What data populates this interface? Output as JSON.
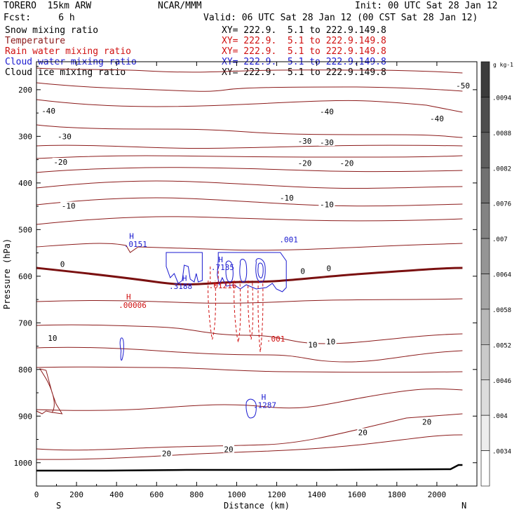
{
  "header": {
    "model": "TORERO  15km ARW",
    "center": "NCAR/MMM",
    "init": "Init: 00 UTC Sat 28 Jan 12",
    "fcst": "Fcst:     6 h",
    "valid": "Valid: 06 UTC Sat 28 Jan 12 (00 CST Sat 28 Jan 12)",
    "legend_fields": [
      {
        "name": "Snow mixing ratio",
        "color": "#000000"
      },
      {
        "name": "Temperature",
        "color": "#8b1a1a"
      },
      {
        "name": "Rain water mixing ratio",
        "color": "#d01010"
      },
      {
        "name": "Cloud water mixing ratio",
        "color": "#1a1ad0"
      },
      {
        "name": "Cloud ice mixing ratio",
        "color": "#000000"
      }
    ],
    "xsec_label": "XY= 222.9.  5.1 to 222.9.149.8"
  },
  "chart_data": {
    "type": "cross-section contour",
    "xlabel": "Distance (km)",
    "ylabel": "Pressure (hPa)",
    "x_ticks": [
      0,
      200,
      400,
      600,
      800,
      1000,
      1200,
      1400,
      1600,
      1800,
      2000
    ],
    "x_end_labels": {
      "left": "S",
      "right": "N"
    },
    "y_ticks": [
      200,
      300,
      400,
      500,
      600,
      700,
      800,
      900,
      1000
    ],
    "xlim": [
      0,
      2200
    ],
    "ylim": [
      1050,
      140
    ],
    "colorbar_unit": "g kg-1",
    "colorbar_ticks": [
      ".0094",
      ".0088",
      ".0082",
      ".0076",
      ".007",
      ".0064",
      ".0058",
      ".0052",
      ".0046",
      ".004",
      ".0034"
    ],
    "temperature_isotherm_labels": [
      {
        "text": "-50",
        "x": 2130,
        "p": 191
      },
      {
        "text": "-40",
        "x": 60,
        "p": 245
      },
      {
        "text": "-40",
        "x": 1450,
        "p": 247
      },
      {
        "text": "-40",
        "x": 2000,
        "p": 262
      },
      {
        "text": "-30",
        "x": 140,
        "p": 300
      },
      {
        "text": "-30",
        "x": 1340,
        "p": 310
      },
      {
        "text": "-30",
        "x": 1450,
        "p": 313
      },
      {
        "text": "-20",
        "x": 120,
        "p": 355
      },
      {
        "text": "-20",
        "x": 1340,
        "p": 357
      },
      {
        "text": "-20",
        "x": 1550,
        "p": 357
      },
      {
        "text": "-10",
        "x": 160,
        "p": 449
      },
      {
        "text": "-10",
        "x": 1250,
        "p": 432
      },
      {
        "text": "-10",
        "x": 1450,
        "p": 446
      },
      {
        "text": "0",
        "x": 130,
        "p": 574
      },
      {
        "text": "0",
        "x": 1330,
        "p": 589
      },
      {
        "text": "0",
        "x": 1460,
        "p": 583
      },
      {
        "text": "10",
        "x": 80,
        "p": 733
      },
      {
        "text": "10",
        "x": 1380,
        "p": 747
      },
      {
        "text": "10",
        "x": 1470,
        "p": 740
      },
      {
        "text": "20",
        "x": 650,
        "p": 980
      },
      {
        "text": "20",
        "x": 960,
        "p": 971
      },
      {
        "text": "20",
        "x": 1630,
        "p": 935
      },
      {
        "text": "20",
        "x": 1950,
        "p": 912
      }
    ],
    "field_annotations": [
      {
        "text": "H",
        "x": 475,
        "p": 520,
        "color": "#1a1ad0"
      },
      {
        "text": ".0151",
        "x": 495,
        "p": 537,
        "color": "#1a1ad0"
      },
      {
        "text": "H",
        "x": 740,
        "p": 610,
        "color": "#1a1ad0"
      },
      {
        "text": ".3188",
        "x": 720,
        "p": 627,
        "color": "#1a1ad0"
      },
      {
        "text": "H",
        "x": 920,
        "p": 570,
        "color": "#1a1ad0"
      },
      {
        "text": ".7135",
        "x": 930,
        "p": 587,
        "color": "#1a1ad0"
      },
      {
        "text": ".01216",
        "x": 930,
        "p": 626,
        "color": "#d01010"
      },
      {
        "text": ".001",
        "x": 1260,
        "p": 527,
        "color": "#1a1ad0"
      },
      {
        "text": "H",
        "x": 460,
        "p": 650,
        "color": "#d01010"
      },
      {
        "text": ".00006",
        "x": 480,
        "p": 668,
        "color": "#d01010"
      },
      {
        "text": ".001",
        "x": 1195,
        "p": 740,
        "color": "#d01010"
      },
      {
        "text": "H",
        "x": 1135,
        "p": 865,
        "color": "#1a1ad0"
      },
      {
        "text": ".1287",
        "x": 1140,
        "p": 882,
        "color": "#1a1ad0"
      }
    ]
  }
}
